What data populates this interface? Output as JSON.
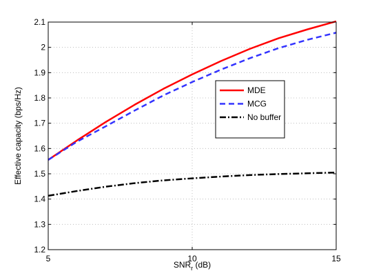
{
  "chart_data": {
    "type": "line",
    "title": "",
    "xlabel": "SNR",
    "xlabel_sub": "r",
    "xlabel_unit": " (dB)",
    "ylabel": "Effective capacity (bps/Hz)",
    "xlim": [
      5,
      15
    ],
    "ylim": [
      1.2,
      2.1
    ],
    "xticks": [
      5,
      10,
      15
    ],
    "yticks": [
      1.2,
      1.3,
      1.4,
      1.5,
      1.6,
      1.7,
      1.8,
      1.9,
      2,
      2.1
    ],
    "ytick_labels": [
      "1.2",
      "1.3",
      "1.4",
      "1.5",
      "1.6",
      "1.7",
      "1.8",
      "1.9",
      "2",
      "2.1"
    ],
    "grid": true,
    "legend_position": "upper-right-inner",
    "x": [
      5,
      6,
      7,
      8,
      9,
      10,
      11,
      12,
      13,
      14,
      15
    ],
    "series": [
      {
        "name": "MDE",
        "color": "#ff0000",
        "style": "solid",
        "values": [
          1.555,
          1.632,
          1.705,
          1.773,
          1.836,
          1.893,
          1.946,
          1.994,
          2.036,
          2.071,
          2.103
        ]
      },
      {
        "name": "MCG",
        "color": "#3333ff",
        "style": "dashed",
        "values": [
          1.555,
          1.627,
          1.688,
          1.75,
          1.81,
          1.863,
          1.912,
          1.957,
          1.997,
          2.03,
          2.058
        ]
      },
      {
        "name": "No buffer",
        "color": "#000000",
        "style": "dashdot",
        "values": [
          1.413,
          1.432,
          1.449,
          1.463,
          1.474,
          1.482,
          1.489,
          1.495,
          1.499,
          1.502,
          1.505
        ]
      }
    ]
  }
}
